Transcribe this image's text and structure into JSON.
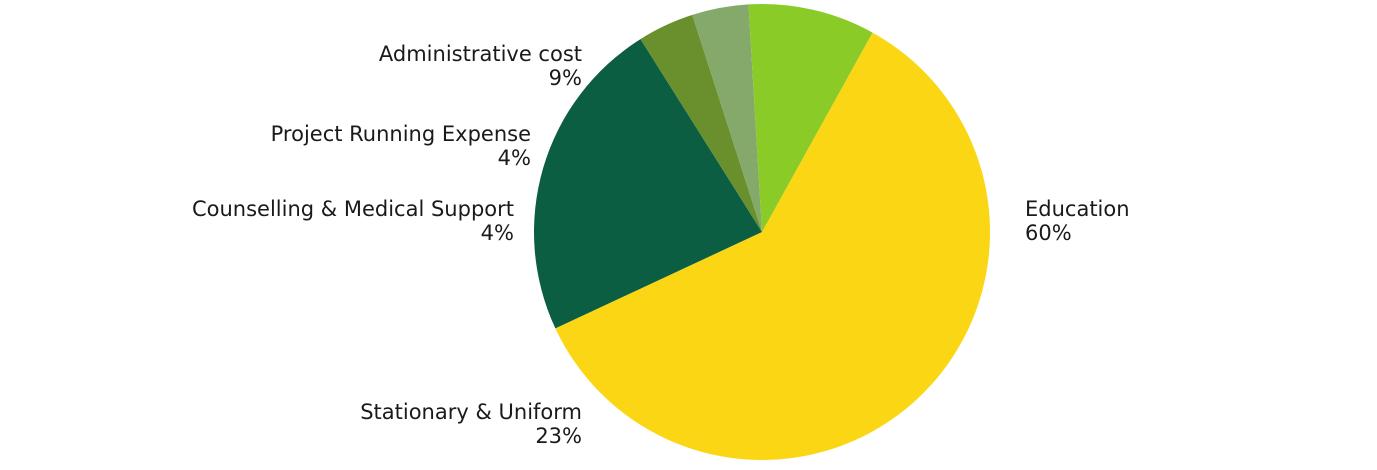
{
  "chart_data": {
    "type": "pie",
    "title": "",
    "slices": [
      {
        "label": "Education",
        "value": 60,
        "value_label": "60%",
        "color": "#FBD614",
        "label_side": "right"
      },
      {
        "label": "Stationary & Uniform",
        "value": 23,
        "value_label": "23%",
        "color": "#0C5E43",
        "label_side": "left"
      },
      {
        "label": "Counselling & Medical Support",
        "value": 4,
        "value_label": "4%",
        "color": "#6A8F2D",
        "label_side": "left"
      },
      {
        "label": "Project Running Expense",
        "value": 4,
        "value_label": "4%",
        "color": "#84A96B",
        "label_side": "left"
      },
      {
        "label": "Administrative cost",
        "value": 9,
        "value_label": "9%",
        "color": "#8ACB28",
        "label_side": "left"
      }
    ],
    "start_angle_deg": 29,
    "direction": "clockwise",
    "legend": "none"
  }
}
